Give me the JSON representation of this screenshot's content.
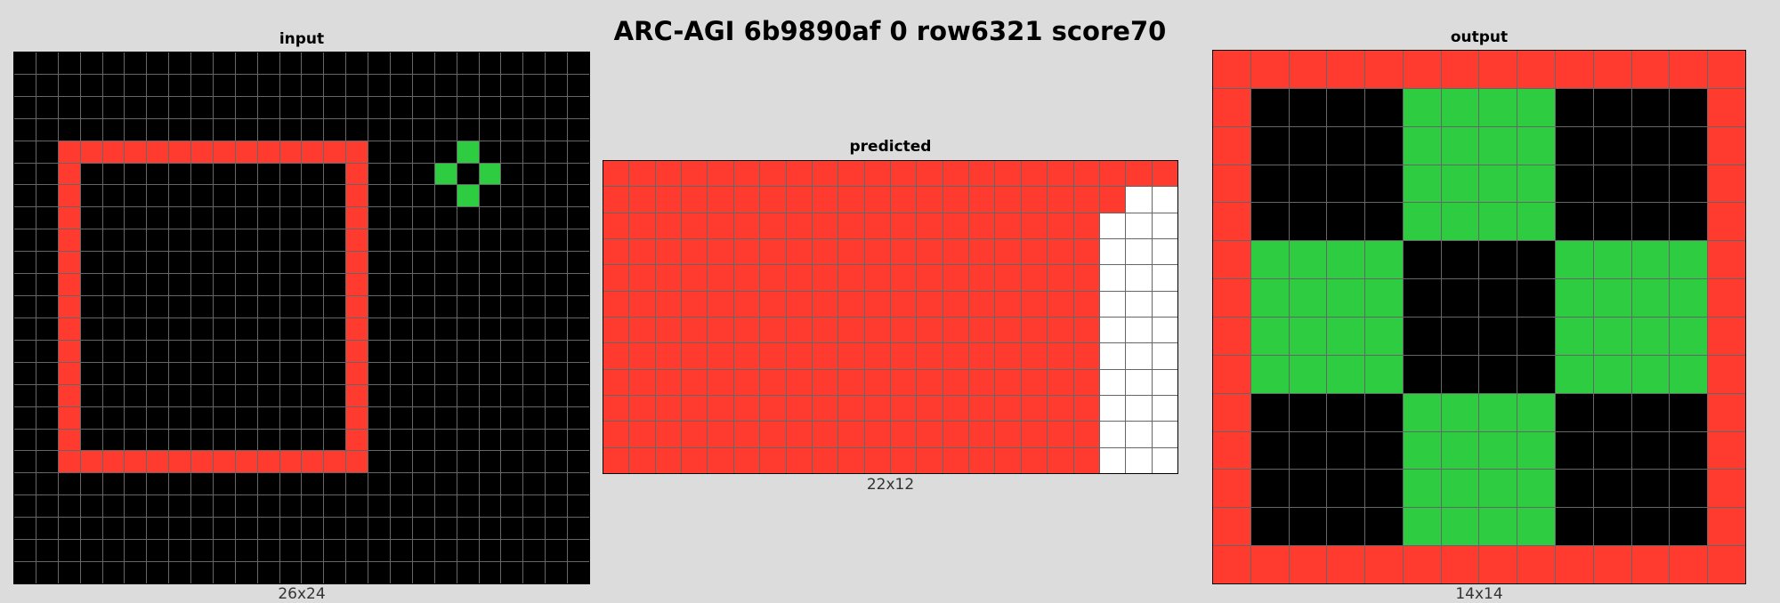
{
  "title": "ARC-AGI 6b9890af 0 row6321 score70",
  "palette": {
    "0": "#000000",
    "2": "#ff3b30",
    "3": "#2ecc40",
    "9": "#ffffff"
  },
  "panels": {
    "input": {
      "label": "input",
      "dims": "26x24",
      "cols": 26,
      "rows": 24,
      "grid": [
        "00000000000000000000000000",
        "00000000000000000000000000",
        "00000000000000000000000000",
        "00000000000000000000000000",
        "00222222222222220000300000",
        "00200000000000020003030000",
        "00200000000000020000300000",
        "00200000000000020000000000",
        "00200000000000020000000000",
        "00200000000000020000000000",
        "00200000000000020000000000",
        "00200000000000020000000000",
        "00200000000000020000000000",
        "00200000000000020000000000",
        "00200000000000020000000000",
        "00200000000000020000000000",
        "00200000000000020000000000",
        "00200000000000020000000000",
        "00222222222222220000000000",
        "00000000000000000000000000",
        "00000000000000000000000000",
        "00000000000000000000000000",
        "00000000000000000000000000",
        "00000000000000000000000000"
      ]
    },
    "predicted": {
      "label": "predicted",
      "dims": "22x12",
      "cols": 22,
      "rows": 12,
      "grid": [
        "2222222222222222222222",
        "2222222222222222222299",
        "2222222222222222222999",
        "2222222222222222222999",
        "2222222222222222222999",
        "2222222222222222222999",
        "2222222222222222222999",
        "2222222222222222222999",
        "2222222222222222222999",
        "2222222222222222222999",
        "2222222222222222222999",
        "2222222222222222222999"
      ]
    },
    "output": {
      "label": "output",
      "dims": "14x14",
      "cols": 14,
      "rows": 14,
      "grid": [
        "22222222222222",
        "20000333300002",
        "20000333300002",
        "20000333300002",
        "20000333300002",
        "23333000033332",
        "23333000033332",
        "23333000033332",
        "23333000033332",
        "20000333300002",
        "20000333300002",
        "20000333300002",
        "20000333300002",
        "22222222222222"
      ]
    }
  }
}
